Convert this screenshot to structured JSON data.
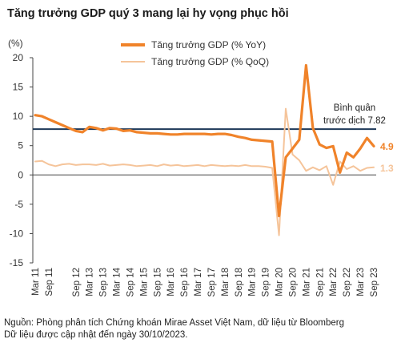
{
  "title": "Tăng trưởng GDP quý 3 mang lại hy vọng phục hồi",
  "unit_label": "(%)",
  "source_lines": [
    "Nguồn: Phòng phân tích Chứng khoán Mirae Asset Việt Nam, dữ liệu từ Bloomberg",
    "Dữ liệu được cập nhật đến ngày 30/10/2023."
  ],
  "colors": {
    "yoy": "#f0832a",
    "qoq": "#f5c49a",
    "average": "#1f3a5a",
    "axis": "#444444"
  },
  "chart_data": {
    "type": "line",
    "ylim": [
      -15,
      20
    ],
    "yticks": [
      -15,
      -10,
      -5,
      0,
      5,
      10,
      15,
      20
    ],
    "x_labels": [
      "Mar 11",
      "Sep 11",
      "Sep 12",
      "Mar 13",
      "Sep 13",
      "Mar 14",
      "Sep 14",
      "Mar 15",
      "Sep 15",
      "Mar 16",
      "Sep 16",
      "Mar 17",
      "Sep 17",
      "Mar 18",
      "Sep 18",
      "Mar 19",
      "Sep 19",
      "Mar 20",
      "Sep 20",
      "Mar 21",
      "Sep 21",
      "Mar 22",
      "Sep 22",
      "Mar 23",
      "Sep 23"
    ],
    "x": [
      "Mar 11",
      "Jun 11",
      "Sep 11",
      "Dec 11",
      "Mar 12",
      "Jun 12",
      "Sep 12",
      "Dec 12",
      "Mar 13",
      "Jun 13",
      "Sep 13",
      "Dec 13",
      "Mar 14",
      "Jun 14",
      "Sep 14",
      "Dec 14",
      "Mar 15",
      "Jun 15",
      "Sep 15",
      "Dec 15",
      "Mar 16",
      "Jun 16",
      "Sep 16",
      "Dec 16",
      "Mar 17",
      "Jun 17",
      "Sep 17",
      "Dec 17",
      "Mar 18",
      "Jun 18",
      "Sep 18",
      "Dec 18",
      "Mar 19",
      "Jun 19",
      "Sep 19",
      "Dec 19",
      "Mar 20",
      "Jun 20",
      "Sep 20",
      "Dec 20",
      "Mar 21",
      "Jun 21",
      "Sep 21",
      "Dec 21",
      "Mar 22",
      "Jun 22",
      "Sep 22",
      "Dec 22",
      "Mar 23",
      "Jun 23",
      "Sep 23"
    ],
    "series": [
      {
        "name": "Tăng trưởng GDP (% YoY)",
        "color_key": "yoy",
        "end_label": "4.9",
        "values": [
          10.2,
          10.0,
          9.5,
          9.0,
          8.5,
          8.0,
          7.5,
          7.3,
          8.2,
          8.0,
          7.6,
          8.0,
          7.9,
          7.5,
          7.6,
          7.3,
          7.2,
          7.1,
          7.1,
          7.0,
          6.9,
          6.9,
          7.0,
          7.0,
          7.0,
          7.0,
          6.9,
          7.0,
          7.0,
          6.8,
          6.5,
          6.3,
          6.0,
          5.9,
          5.8,
          5.7,
          -7.0,
          3.0,
          4.5,
          6.0,
          18.7,
          8.0,
          5.2,
          4.6,
          4.9,
          0.4,
          3.8,
          3.0,
          4.5,
          6.3,
          4.9
        ]
      },
      {
        "name": "Tăng trưởng GDP (% QoQ)",
        "color_key": "qoq",
        "end_label": "1.3",
        "values": [
          2.3,
          2.4,
          1.8,
          1.5,
          1.8,
          1.9,
          1.7,
          1.8,
          1.8,
          1.7,
          1.9,
          1.6,
          1.7,
          1.8,
          1.7,
          1.5,
          1.6,
          1.7,
          1.5,
          1.8,
          1.6,
          1.7,
          1.5,
          1.6,
          1.7,
          1.5,
          1.7,
          1.6,
          1.5,
          1.6,
          1.5,
          1.7,
          1.5,
          1.5,
          1.4,
          1.2,
          -10.3,
          11.3,
          3.5,
          2.5,
          0.7,
          1.3,
          0.8,
          1.5,
          -1.7,
          2.3,
          1.0,
          1.5,
          0.7,
          1.2,
          1.3
        ]
      }
    ],
    "reference_line": {
      "value": 7.82,
      "label_lines": [
        "Bình quân",
        "trước dịch 7.82"
      ]
    },
    "legend": "top-center",
    "grid": false
  }
}
